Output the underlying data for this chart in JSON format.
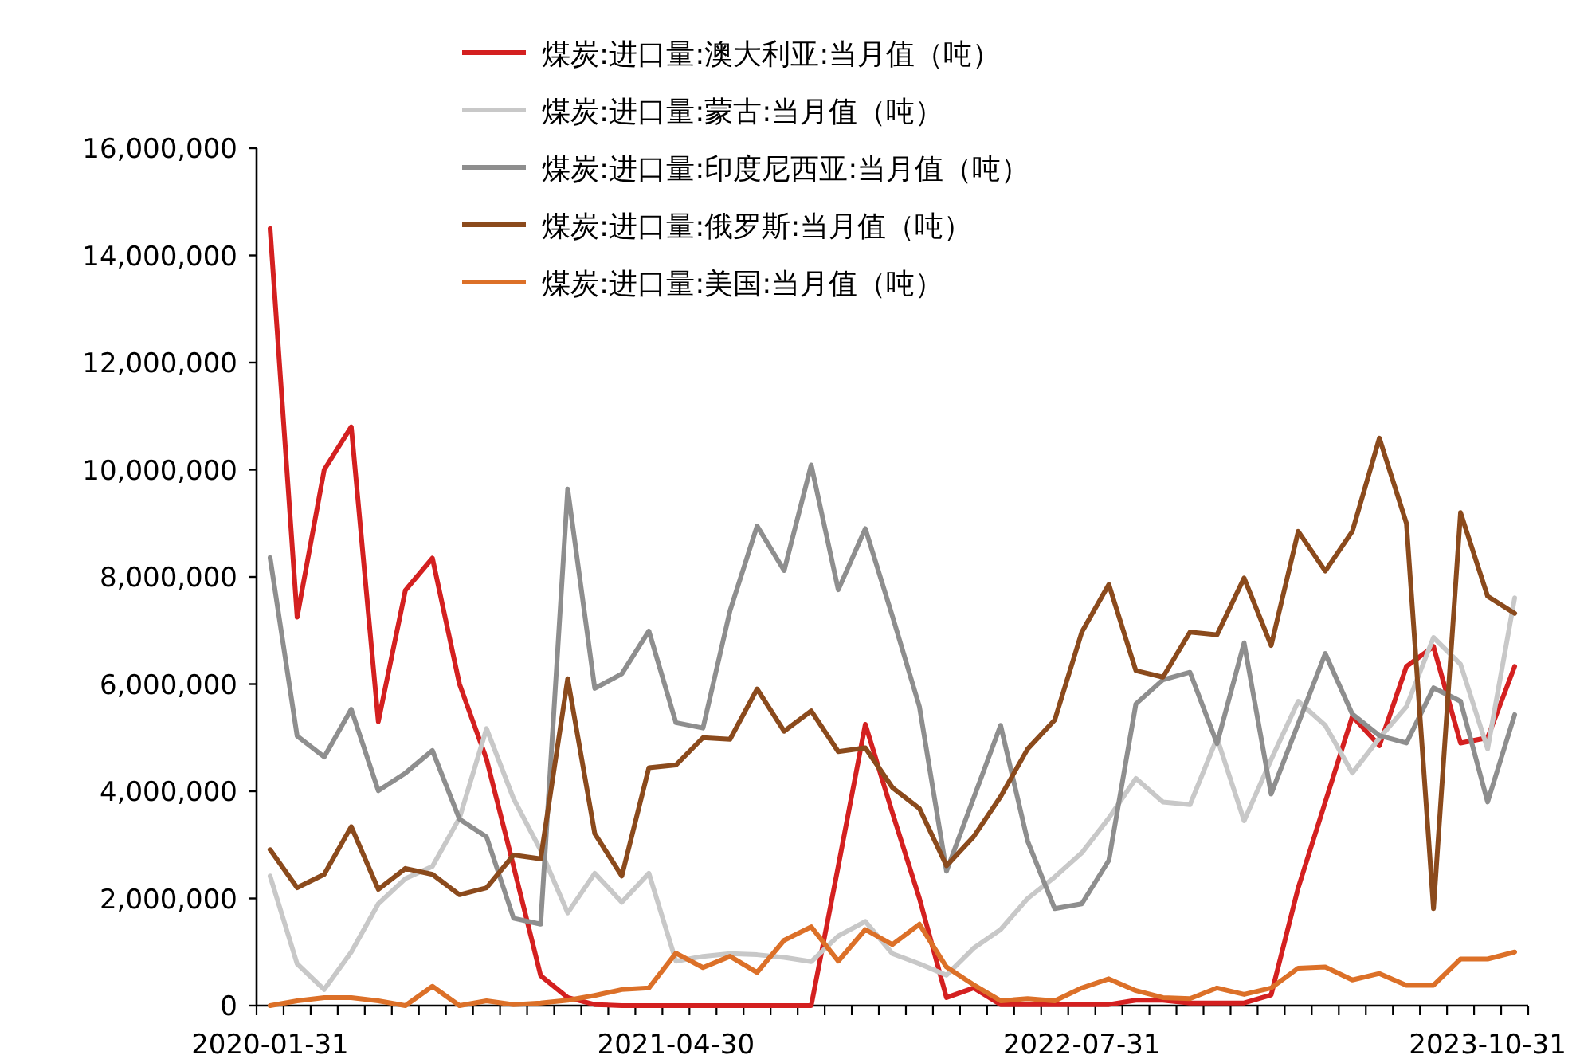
{
  "chart_data": {
    "type": "line",
    "categories": [
      "2020-01-31",
      null,
      null,
      null,
      null,
      null,
      null,
      null,
      null,
      null,
      null,
      null,
      null,
      null,
      null,
      "2021-04-30",
      null,
      null,
      null,
      null,
      null,
      null,
      null,
      null,
      null,
      null,
      null,
      null,
      null,
      null,
      "2022-07-31",
      null,
      null,
      null,
      null,
      null,
      null,
      null,
      null,
      null,
      null,
      null,
      null,
      null,
      null,
      "2023-10-31",
      null
    ],
    "ylim": [
      0,
      16000000
    ],
    "yticks": [
      0,
      {
        "value": 2000000,
        "label": "2,000,000"
      },
      {
        "value": 4000000,
        "label": "4,000,000"
      },
      {
        "value": 6000000,
        "label": "6,000,000"
      },
      {
        "value": 8000000,
        "label": "8,000,000"
      },
      {
        "value": 10000000,
        "label": "10,000,000"
      },
      {
        "value": 12000000,
        "label": "12,000,000"
      },
      {
        "value": 14000000,
        "label": "14,000,000"
      },
      {
        "value": 16000000,
        "label": "16,000,000"
      }
    ],
    "legend": "top",
    "series": [
      {
        "name": "煤炭:进口量:澳大利亚:当月值（吨）",
        "color": "#d42020",
        "values": [
          14500000,
          7250000,
          10000000,
          10800000,
          5300000,
          7750000,
          8350000,
          6000000,
          4600000,
          2600000,
          560000,
          150000,
          20000,
          0,
          0,
          0,
          0,
          0,
          0,
          0,
          0,
          2600000,
          5250000,
          3600000,
          2000000,
          150000,
          330000,
          20000,
          20000,
          20000,
          20000,
          20000,
          100000,
          100000,
          50000,
          50000,
          50000,
          200000,
          2200000,
          3800000,
          5400000,
          4850000,
          6330000,
          6700000,
          4900000,
          5000000,
          6330000
        ]
      },
      {
        "name": "煤炭:进口量:蒙古:当月值（吨）",
        "color": "#c8c8c8",
        "values": [
          2420000,
          780000,
          300000,
          1000000,
          1900000,
          2370000,
          2600000,
          3500000,
          5170000,
          3860000,
          2900000,
          1730000,
          2470000,
          1930000,
          2470000,
          830000,
          920000,
          970000,
          950000,
          900000,
          820000,
          1300000,
          1570000,
          970000,
          780000,
          570000,
          1070000,
          1420000,
          2000000,
          2400000,
          2850000,
          3500000,
          4240000,
          3800000,
          3750000,
          4990000,
          3450000,
          4590000,
          5680000,
          5230000,
          4340000,
          4990000,
          5580000,
          6870000,
          6370000,
          4790000,
          7610000
        ]
      },
      {
        "name": "煤炭:进口量:印度尼西亚:当月值（吨）",
        "color": "#8e8e8e",
        "values": [
          8360000,
          5030000,
          4640000,
          5530000,
          4010000,
          4340000,
          4760000,
          3480000,
          3150000,
          1630000,
          1520000,
          9640000,
          5920000,
          6190000,
          6990000,
          5280000,
          5180000,
          7370000,
          8950000,
          8120000,
          10090000,
          7760000,
          8900000,
          7270000,
          5580000,
          2510000,
          3870000,
          5230000,
          3070000,
          1810000,
          1900000,
          2710000,
          5630000,
          6080000,
          6220000,
          4890000,
          6770000,
          3950000,
          5260000,
          6570000,
          5440000,
          5040000,
          4900000,
          5930000,
          5680000,
          3800000,
          5430000
        ]
      },
      {
        "name": "煤炭:进口量:俄罗斯:当月值（吨）",
        "color": "#8b4a1c",
        "values": [
          2910000,
          2200000,
          2450000,
          3340000,
          2170000,
          2560000,
          2450000,
          2070000,
          2200000,
          2810000,
          2740000,
          6100000,
          3210000,
          2420000,
          4440000,
          4490000,
          5000000,
          4970000,
          5910000,
          5120000,
          5500000,
          4740000,
          4810000,
          4070000,
          3680000,
          2610000,
          3150000,
          3900000,
          4790000,
          5330000,
          6970000,
          7860000,
          6250000,
          6130000,
          6970000,
          6920000,
          7980000,
          6720000,
          8850000,
          8110000,
          8850000,
          10590000,
          9000000,
          1810000,
          9200000,
          7640000,
          7320000
        ]
      },
      {
        "name": "煤炭:进口量:美国:当月值（吨）",
        "color": "#dc7028",
        "values": [
          0,
          90000,
          150000,
          150000,
          90000,
          0,
          360000,
          0,
          90000,
          20000,
          50000,
          100000,
          190000,
          300000,
          330000,
          980000,
          710000,
          920000,
          620000,
          1220000,
          1470000,
          830000,
          1420000,
          1140000,
          1520000,
          720000,
          390000,
          90000,
          130000,
          90000,
          330000,
          500000,
          280000,
          150000,
          130000,
          330000,
          210000,
          330000,
          700000,
          720000,
          480000,
          600000,
          380000,
          380000,
          870000,
          870000,
          1000000
        ]
      }
    ]
  }
}
